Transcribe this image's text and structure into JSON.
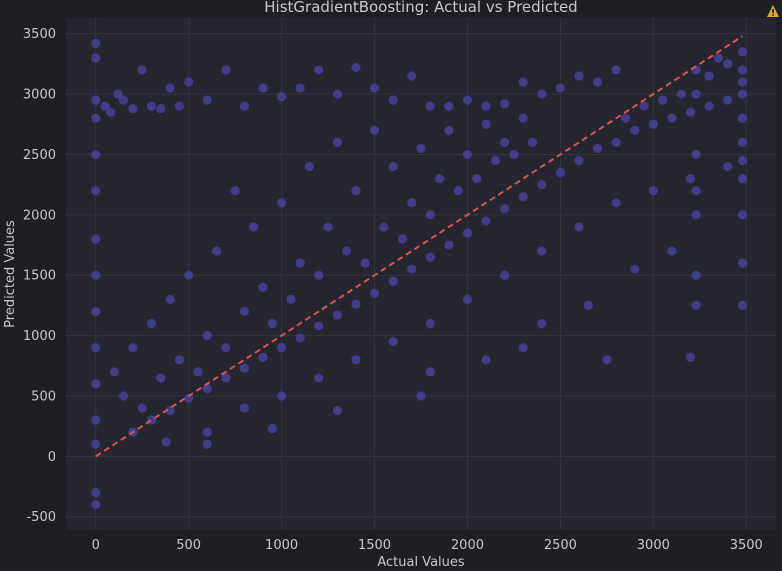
{
  "colors": {
    "background": "#1e1f22",
    "plot_background": "#262631",
    "grid": "#343442",
    "text": "#c7c7cc",
    "point": "#4b46a5",
    "reference_line": "#d9534f",
    "warning": "#e0a53a"
  },
  "icons": {
    "warning": "warning-triangle-icon"
  },
  "chart_data": {
    "type": "scatter",
    "title": "HistGradientBoosting: Actual vs Predicted",
    "xlabel": "Actual Values",
    "ylabel": "Predicted Values",
    "xlim": [
      -160,
      3660
    ],
    "ylim": [
      -610,
      3630
    ],
    "xticks": [
      0,
      500,
      1000,
      1500,
      2000,
      2500,
      3000,
      3500
    ],
    "yticks": [
      -500,
      0,
      500,
      1000,
      1500,
      2000,
      2500,
      3000,
      3500
    ],
    "grid": true,
    "reference_line": {
      "style": "dashed",
      "from": [
        0,
        0
      ],
      "to": [
        3480,
        3480
      ]
    },
    "series": [
      {
        "points": [
          [
            0,
            2950
          ],
          [
            0,
            2800
          ],
          [
            0,
            2500
          ],
          [
            0,
            2200
          ],
          [
            0,
            1800
          ],
          [
            0,
            1500
          ],
          [
            0,
            1200
          ],
          [
            0,
            900
          ],
          [
            0,
            600
          ],
          [
            0,
            300
          ],
          [
            0,
            100
          ],
          [
            0,
            -300
          ],
          [
            0,
            -400
          ],
          [
            0,
            3300
          ],
          [
            0,
            3420
          ],
          [
            50,
            2900
          ],
          [
            80,
            2850
          ],
          [
            120,
            3000
          ],
          [
            150,
            2950
          ],
          [
            200,
            2880
          ],
          [
            250,
            3200
          ],
          [
            300,
            2900
          ],
          [
            350,
            2880
          ],
          [
            400,
            3050
          ],
          [
            450,
            2900
          ],
          [
            500,
            3100
          ],
          [
            600,
            2950
          ],
          [
            700,
            3200
          ],
          [
            800,
            2900
          ],
          [
            900,
            3050
          ],
          [
            1000,
            2980
          ],
          [
            1100,
            3050
          ],
          [
            1200,
            3200
          ],
          [
            1300,
            3000
          ],
          [
            1400,
            3220
          ],
          [
            1500,
            3050
          ],
          [
            1600,
            2950
          ],
          [
            1700,
            3150
          ],
          [
            1800,
            2900
          ],
          [
            1900,
            2900
          ],
          [
            2000,
            2950
          ],
          [
            2100,
            2900
          ],
          [
            2200,
            2920
          ],
          [
            2300,
            3100
          ],
          [
            2400,
            3000
          ],
          [
            2500,
            3050
          ],
          [
            2600,
            3150
          ],
          [
            2700,
            3100
          ],
          [
            2800,
            3200
          ],
          [
            100,
            700
          ],
          [
            150,
            500
          ],
          [
            200,
            900
          ],
          [
            250,
            400
          ],
          [
            300,
            1100
          ],
          [
            350,
            650
          ],
          [
            400,
            1300
          ],
          [
            450,
            800
          ],
          [
            500,
            1500
          ],
          [
            550,
            700
          ],
          [
            600,
            1000
          ],
          [
            650,
            1700
          ],
          [
            700,
            900
          ],
          [
            750,
            2200
          ],
          [
            800,
            1200
          ],
          [
            850,
            1900
          ],
          [
            900,
            1400
          ],
          [
            950,
            1100
          ],
          [
            1000,
            2100
          ],
          [
            1050,
            1300
          ],
          [
            1100,
            1600
          ],
          [
            1150,
            2400
          ],
          [
            1200,
            1500
          ],
          [
            1250,
            1900
          ],
          [
            1300,
            2600
          ],
          [
            1350,
            1700
          ],
          [
            1400,
            2200
          ],
          [
            1450,
            1600
          ],
          [
            1500,
            2700
          ],
          [
            1550,
            1900
          ],
          [
            1600,
            2400
          ],
          [
            1650,
            1800
          ],
          [
            1700,
            2100
          ],
          [
            1750,
            2550
          ],
          [
            1800,
            2000
          ],
          [
            1850,
            2300
          ],
          [
            1900,
            2700
          ],
          [
            1950,
            2200
          ],
          [
            2000,
            2500
          ],
          [
            2050,
            2300
          ],
          [
            2100,
            2750
          ],
          [
            2150,
            2450
          ],
          [
            2200,
            2600
          ],
          [
            2250,
            2500
          ],
          [
            2300,
            2800
          ],
          [
            2350,
            2600
          ],
          [
            200,
            200
          ],
          [
            300,
            300
          ],
          [
            400,
            380
          ],
          [
            500,
            480
          ],
          [
            600,
            560
          ],
          [
            700,
            650
          ],
          [
            800,
            730
          ],
          [
            900,
            820
          ],
          [
            1000,
            900
          ],
          [
            1100,
            980
          ],
          [
            1200,
            1080
          ],
          [
            1300,
            1170
          ],
          [
            1400,
            1260
          ],
          [
            1500,
            1350
          ],
          [
            1600,
            1450
          ],
          [
            1700,
            1550
          ],
          [
            1800,
            1650
          ],
          [
            1900,
            1750
          ],
          [
            2000,
            1850
          ],
          [
            2100,
            1950
          ],
          [
            2200,
            2050
          ],
          [
            2300,
            2150
          ],
          [
            2400,
            2250
          ],
          [
            2500,
            2350
          ],
          [
            2600,
            2450
          ],
          [
            2700,
            2550
          ],
          [
            2800,
            2600
          ],
          [
            2900,
            2700
          ],
          [
            3000,
            2750
          ],
          [
            3100,
            2800
          ],
          [
            3200,
            2850
          ],
          [
            3300,
            2900
          ],
          [
            3400,
            2950
          ],
          [
            3480,
            3000
          ],
          [
            600,
            200
          ],
          [
            800,
            400
          ],
          [
            1000,
            500
          ],
          [
            1200,
            650
          ],
          [
            1400,
            800
          ],
          [
            1600,
            950
          ],
          [
            1800,
            1100
          ],
          [
            2000,
            1300
          ],
          [
            2200,
            1500
          ],
          [
            2400,
            1700
          ],
          [
            2600,
            1900
          ],
          [
            2800,
            2100
          ],
          [
            3000,
            2200
          ],
          [
            3200,
            2300
          ],
          [
            3400,
            2400
          ],
          [
            3480,
            2450
          ],
          [
            1300,
            380
          ],
          [
            1800,
            700
          ],
          [
            2400,
            1100
          ],
          [
            2750,
            800
          ],
          [
            3200,
            820
          ],
          [
            3230,
            1250
          ],
          [
            3480,
            1250
          ],
          [
            3480,
            1600
          ],
          [
            3230,
            1500
          ],
          [
            3100,
            1700
          ],
          [
            2900,
            1550
          ],
          [
            2650,
            1250
          ],
          [
            2300,
            900
          ],
          [
            2100,
            800
          ],
          [
            1750,
            500
          ],
          [
            950,
            230
          ],
          [
            380,
            120
          ],
          [
            600,
            100
          ],
          [
            3230,
            2000
          ],
          [
            3230,
            2200
          ],
          [
            3230,
            2500
          ],
          [
            3230,
            3000
          ],
          [
            3230,
            3200
          ],
          [
            3480,
            2800
          ],
          [
            3480,
            3100
          ],
          [
            3480,
            3200
          ],
          [
            3480,
            3350
          ],
          [
            3480,
            2600
          ],
          [
            3480,
            2300
          ],
          [
            3480,
            2000
          ],
          [
            3350,
            3300
          ],
          [
            3400,
            3250
          ],
          [
            3300,
            3150
          ],
          [
            3150,
            3000
          ],
          [
            3050,
            2950
          ],
          [
            2950,
            2900
          ],
          [
            2850,
            2800
          ]
        ]
      }
    ]
  }
}
